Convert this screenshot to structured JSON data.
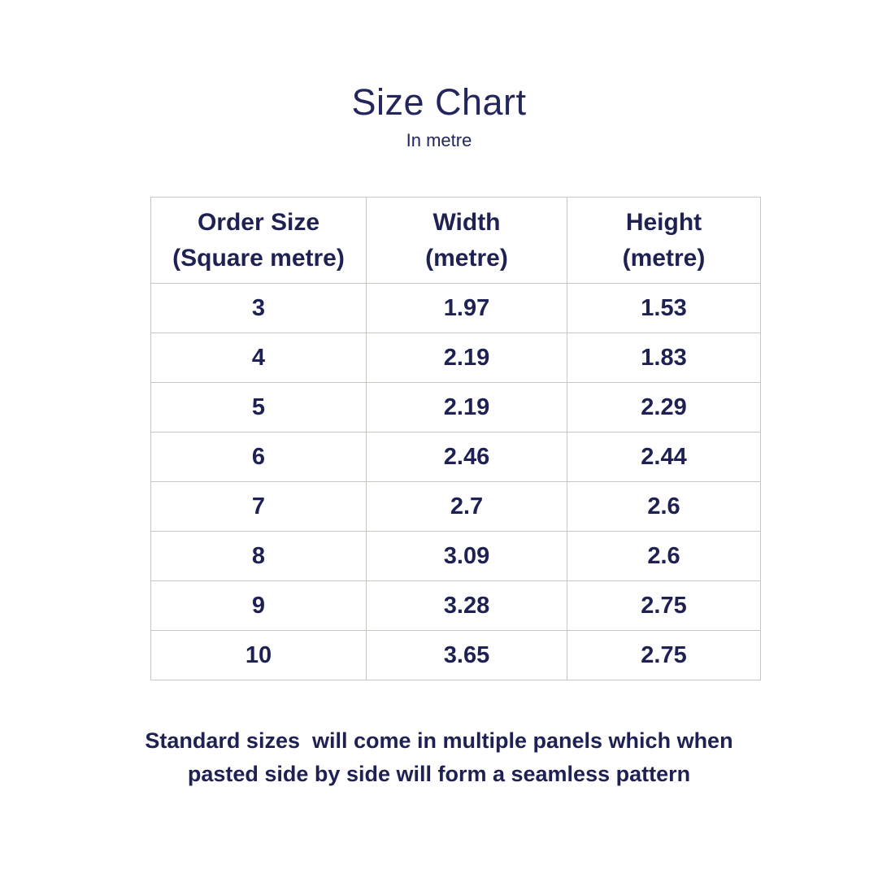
{
  "colors": {
    "text_navy": "#23265c",
    "table_text": "#1e2152",
    "border": "#c7c7c2",
    "page_bg": "#ffffff"
  },
  "header": {
    "title": "Size Chart",
    "subtitle": "In metre"
  },
  "table": {
    "columns": [
      {
        "title": "Order Size",
        "subtitle": "(Square metre)"
      },
      {
        "title": "Width",
        "subtitle": "(metre)"
      },
      {
        "title": "Height",
        "subtitle": "(metre)"
      }
    ],
    "rows": [
      {
        "order_size": "3",
        "width": "1.97",
        "height": "1.53"
      },
      {
        "order_size": "4",
        "width": "2.19",
        "height": "1.83"
      },
      {
        "order_size": "5",
        "width": "2.19",
        "height": "2.29"
      },
      {
        "order_size": "6",
        "width": "2.46",
        "height": "2.44"
      },
      {
        "order_size": "7",
        "width": "2.7",
        "height": "2.6"
      },
      {
        "order_size": "8",
        "width": "3.09",
        "height": "2.6"
      },
      {
        "order_size": "9",
        "width": "3.28",
        "height": "2.75"
      },
      {
        "order_size": "10",
        "width": "3.65",
        "height": "2.75"
      }
    ]
  },
  "footer": {
    "lines": [
      "Standard sizes  will come in multiple panels which when",
      "pasted side by side will form a seamless pattern"
    ]
  },
  "chart_data": {
    "type": "table",
    "title": "Size Chart",
    "subtitle": "In metre",
    "columns": [
      "Order Size (Square metre)",
      "Width (metre)",
      "Height (metre)"
    ],
    "rows": [
      [
        3,
        1.97,
        1.53
      ],
      [
        4,
        2.19,
        1.83
      ],
      [
        5,
        2.19,
        2.29
      ],
      [
        6,
        2.46,
        2.44
      ],
      [
        7,
        2.7,
        2.6
      ],
      [
        8,
        3.09,
        2.6
      ],
      [
        9,
        3.28,
        2.75
      ],
      [
        10,
        3.65,
        2.75
      ]
    ],
    "note": "Standard sizes  will come in multiple panels which when pasted side by side will form a seamless pattern"
  }
}
